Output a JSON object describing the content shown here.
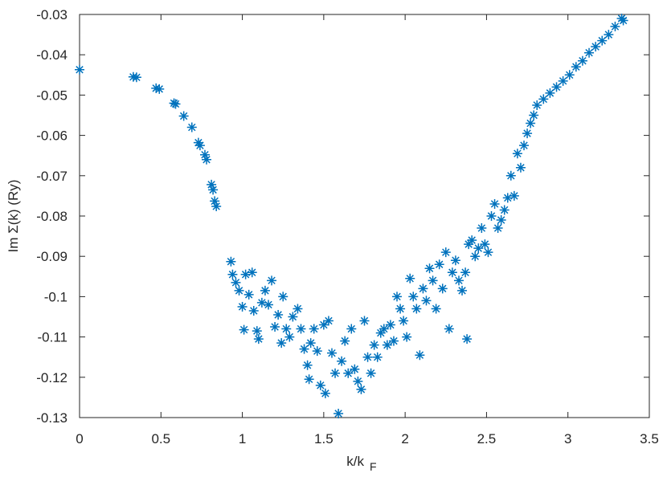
{
  "chart_data": {
    "type": "scatter",
    "xlabel": "k/k",
    "xlabel_subscript": "F",
    "ylabel": "Im Σ(k) (Ry)",
    "xlim": [
      0,
      3.5
    ],
    "ylim": [
      -0.13,
      -0.03
    ],
    "xticks": [
      0,
      0.5,
      1,
      1.5,
      2,
      2.5,
      3,
      3.5
    ],
    "yticks": [
      -0.13,
      -0.12,
      -0.11,
      -0.1,
      -0.09,
      -0.08,
      -0.07,
      -0.06,
      -0.05,
      -0.04,
      -0.03
    ],
    "grid": false,
    "color": "#0072bd",
    "marker": "asterisk",
    "x": [
      0,
      0.33,
      0.35,
      0.47,
      0.49,
      0.58,
      0.59,
      0.64,
      0.69,
      0.73,
      0.74,
      0.77,
      0.78,
      0.81,
      0.82,
      0.83,
      0.84,
      0.93,
      0.94,
      0.96,
      0.98,
      1.0,
      1.01,
      1.02,
      1.04,
      1.06,
      1.07,
      1.09,
      1.1,
      1.12,
      1.14,
      1.16,
      1.18,
      1.2,
      1.22,
      1.24,
      1.25,
      1.27,
      1.29,
      1.31,
      1.34,
      1.36,
      1.38,
      1.4,
      1.41,
      1.42,
      1.44,
      1.46,
      1.48,
      1.5,
      1.51,
      1.53,
      1.55,
      1.57,
      1.59,
      1.61,
      1.63,
      1.65,
      1.67,
      1.69,
      1.71,
      1.73,
      1.75,
      1.77,
      1.79,
      1.81,
      1.83,
      1.85,
      1.87,
      1.89,
      1.91,
      1.93,
      1.95,
      1.97,
      1.99,
      2.01,
      2.03,
      2.05,
      2.07,
      2.09,
      2.11,
      2.13,
      2.15,
      2.17,
      2.19,
      2.21,
      2.23,
      2.25,
      2.27,
      2.29,
      2.31,
      2.33,
      2.35,
      2.37,
      2.38,
      2.39,
      2.41,
      2.43,
      2.45,
      2.47,
      2.49,
      2.51,
      2.53,
      2.55,
      2.57,
      2.59,
      2.61,
      2.63,
      2.65,
      2.67,
      2.69,
      2.71,
      2.73,
      2.75,
      2.77,
      2.79,
      2.81,
      2.85,
      2.89,
      2.93,
      2.97,
      3.01,
      3.05,
      3.09,
      3.13,
      3.17,
      3.21,
      3.25,
      3.29,
      3.33,
      3.34
    ],
    "y": [
      -0.0437,
      -0.0455,
      -0.0456,
      -0.0483,
      -0.0485,
      -0.052,
      -0.0522,
      -0.0552,
      -0.058,
      -0.0618,
      -0.0625,
      -0.0648,
      -0.066,
      -0.0722,
      -0.0735,
      -0.0763,
      -0.0776,
      -0.0913,
      -0.0945,
      -0.0965,
      -0.0985,
      -0.1025,
      -0.1082,
      -0.0945,
      -0.0995,
      -0.094,
      -0.1035,
      -0.1085,
      -0.1105,
      -0.1015,
      -0.0985,
      -0.102,
      -0.096,
      -0.1075,
      -0.1045,
      -0.1115,
      -0.1,
      -0.108,
      -0.11,
      -0.105,
      -0.103,
      -0.108,
      -0.113,
      -0.117,
      -0.1205,
      -0.1115,
      -0.108,
      -0.1135,
      -0.122,
      -0.107,
      -0.124,
      -0.106,
      -0.114,
      -0.119,
      -0.129,
      -0.116,
      -0.111,
      -0.119,
      -0.108,
      -0.118,
      -0.121,
      -0.123,
      -0.106,
      -0.115,
      -0.119,
      -0.112,
      -0.115,
      -0.109,
      -0.108,
      -0.112,
      -0.107,
      -0.111,
      -0.1,
      -0.103,
      -0.106,
      -0.11,
      -0.0955,
      -0.1,
      -0.103,
      -0.1145,
      -0.098,
      -0.101,
      -0.093,
      -0.096,
      -0.103,
      -0.092,
      -0.098,
      -0.089,
      -0.108,
      -0.094,
      -0.091,
      -0.096,
      -0.0985,
      -0.094,
      -0.1105,
      -0.087,
      -0.086,
      -0.09,
      -0.088,
      -0.083,
      -0.087,
      -0.089,
      -0.08,
      -0.077,
      -0.083,
      -0.081,
      -0.0785,
      -0.0755,
      -0.07,
      -0.075,
      -0.0645,
      -0.068,
      -0.0625,
      -0.0595,
      -0.057,
      -0.055,
      -0.0525,
      -0.051,
      -0.0495,
      -0.048,
      -0.0465,
      -0.045,
      -0.043,
      -0.0415,
      -0.0395,
      -0.038,
      -0.0365,
      -0.035,
      -0.033,
      -0.031,
      -0.0315
    ]
  }
}
